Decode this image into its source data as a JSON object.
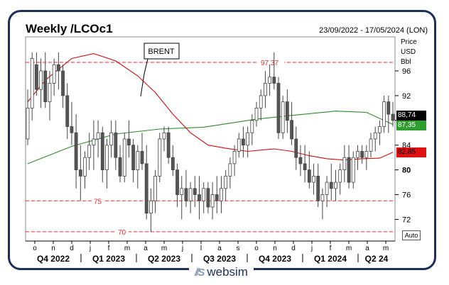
{
  "header": {
    "title": "Weekly /LCOc1",
    "date_range": "23/09/2022 - 17/05/2024 (LON)"
  },
  "units": [
    "Price",
    "USD",
    "Bbl"
  ],
  "annotation": "BRENT",
  "value_tags": [
    {
      "label": "88,74",
      "value": 88.74,
      "bg": "#000000",
      "fg": "#ffffff"
    },
    {
      "label": "87,35",
      "value": 87.35,
      "bg": "#2e9e2e",
      "fg": "#ffffff"
    },
    {
      "label": "82,85",
      "value": 82.85,
      "bg": "#e01010",
      "fg": "#000000"
    }
  ],
  "auto_label": "Auto",
  "logo": {
    "mark": "//S",
    "text": "websim"
  },
  "chart_data": {
    "type": "candlestick",
    "y_range": [
      68.5,
      101.5
    ],
    "y_ticks": [
      72,
      76,
      80,
      84,
      88,
      92,
      96
    ],
    "y_ticks_bold": [
      80
    ],
    "ref_lines": [
      {
        "value": 97.37,
        "label": "97,37"
      },
      {
        "value": 75,
        "label": "75"
      },
      {
        "value": 70,
        "label": "70"
      }
    ],
    "x_month_ticks": [
      "o",
      "n",
      "d",
      "j",
      "f",
      "m",
      "a",
      "m",
      "j",
      "l",
      "a",
      "s",
      "o",
      "n",
      "d",
      "j",
      "f",
      "m",
      "a",
      "m"
    ],
    "x_quarters": [
      "Q4 2022",
      "Q1 2023",
      "Q2 2023",
      "Q3 2023",
      "Q4 2023",
      "Q1 2024",
      "Q2 24"
    ],
    "candles": [
      [
        85,
        93,
        84,
        90
      ],
      [
        90,
        99,
        88,
        98
      ],
      [
        97,
        99,
        92,
        93
      ],
      [
        93,
        98,
        90,
        96
      ],
      [
        96,
        99,
        90,
        91
      ],
      [
        91,
        96,
        88,
        94
      ],
      [
        94,
        98,
        92,
        97
      ],
      [
        97,
        99,
        93,
        96
      ],
      [
        96,
        97,
        90,
        92
      ],
      [
        92,
        94,
        85,
        87
      ],
      [
        87,
        91,
        84,
        86
      ],
      [
        86,
        89,
        77,
        80
      ],
      [
        80,
        84,
        75,
        79
      ],
      [
        79,
        83,
        77,
        82
      ],
      [
        82,
        86,
        80,
        84
      ],
      [
        84,
        88,
        80,
        85
      ],
      [
        85,
        88,
        82,
        86
      ],
      [
        86,
        87,
        78,
        80
      ],
      [
        80,
        85,
        77,
        84
      ],
      [
        84,
        88,
        82,
        86
      ],
      [
        86,
        88,
        80,
        82
      ],
      [
        82,
        84,
        78,
        79
      ],
      [
        79,
        86,
        78,
        85
      ],
      [
        85,
        88,
        82,
        84
      ],
      [
        84,
        85,
        78,
        80
      ],
      [
        80,
        84,
        77,
        83
      ],
      [
        83,
        86,
        80,
        81
      ],
      [
        81,
        84,
        72,
        73
      ],
      [
        73,
        77,
        70,
        75
      ],
      [
        75,
        80,
        73,
        79
      ],
      [
        79,
        86,
        78,
        85
      ],
      [
        85,
        87,
        83,
        86
      ],
      [
        86,
        87,
        81,
        82
      ],
      [
        82,
        84,
        79,
        80
      ],
      [
        80,
        81,
        74,
        76
      ],
      [
        76,
        79,
        72,
        77
      ],
      [
        77,
        80,
        74,
        75
      ],
      [
        75,
        78,
        73,
        77
      ],
      [
        77,
        79,
        74,
        76
      ],
      [
        76,
        79,
        72,
        75
      ],
      [
        75,
        78,
        73,
        77
      ],
      [
        77,
        78,
        73,
        74
      ],
      [
        74,
        78,
        72,
        76
      ],
      [
        76,
        79,
        73,
        75
      ],
      [
        75,
        79,
        73,
        77
      ],
      [
        77,
        80,
        75,
        79
      ],
      [
        79,
        82,
        77,
        81
      ],
      [
        81,
        84,
        79,
        83
      ],
      [
        83,
        86,
        82,
        85
      ],
      [
        85,
        87,
        82,
        84
      ],
      [
        84,
        87,
        82,
        86
      ],
      [
        86,
        89,
        84,
        88
      ],
      [
        88,
        91,
        87,
        90
      ],
      [
        90,
        93,
        88,
        92
      ],
      [
        92,
        96,
        90,
        94
      ],
      [
        94,
        97,
        92,
        95
      ],
      [
        95,
        99,
        93,
        94
      ],
      [
        94,
        95,
        85,
        86
      ],
      [
        86,
        92,
        85,
        91
      ],
      [
        91,
        93,
        86,
        88
      ],
      [
        88,
        91,
        84,
        85
      ],
      [
        85,
        87,
        80,
        82
      ],
      [
        82,
        84,
        79,
        81
      ],
      [
        81,
        84,
        78,
        80
      ],
      [
        80,
        83,
        77,
        78
      ],
      [
        78,
        81,
        76,
        79
      ],
      [
        79,
        81,
        74,
        75
      ],
      [
        75,
        77,
        72,
        76
      ],
      [
        76,
        79,
        74,
        78
      ],
      [
        78,
        81,
        75,
        77
      ],
      [
        77,
        80,
        75,
        78
      ],
      [
        78,
        81,
        76,
        80
      ],
      [
        80,
        84,
        78,
        82
      ],
      [
        82,
        84,
        77,
        78
      ],
      [
        78,
        83,
        77,
        82
      ],
      [
        82,
        84,
        80,
        83
      ],
      [
        83,
        84,
        81,
        82
      ],
      [
        82,
        84,
        80,
        83
      ],
      [
        83,
        86,
        82,
        85
      ],
      [
        85,
        87,
        83,
        86
      ],
      [
        86,
        88,
        84,
        87
      ],
      [
        87,
        92,
        86,
        91
      ],
      [
        91,
        92,
        86,
        89
      ],
      [
        89,
        91,
        87,
        88
      ]
    ],
    "series": [
      {
        "name": "Short moving average",
        "color": "#2e8b2e",
        "points": [
          [
            0,
            81
          ],
          [
            10,
            83.8
          ],
          [
            20,
            85.8
          ],
          [
            30,
            86.6
          ],
          [
            40,
            86.9
          ],
          [
            52,
            88.2
          ],
          [
            60,
            88.8
          ],
          [
            70,
            89.5
          ],
          [
            77,
            89.3
          ],
          [
            83,
            87.35
          ]
        ]
      },
      {
        "name": "Long moving average",
        "color": "#cc1010",
        "points": [
          [
            0,
            91
          ],
          [
            4,
            94.5
          ],
          [
            10,
            98
          ],
          [
            15,
            98.8
          ],
          [
            20,
            97.6
          ],
          [
            25,
            95.2
          ],
          [
            29,
            92.5
          ],
          [
            33,
            89
          ],
          [
            37,
            86
          ],
          [
            41,
            84
          ],
          [
            45,
            83.5
          ],
          [
            50,
            83
          ],
          [
            56,
            83.4
          ],
          [
            60,
            83
          ],
          [
            64,
            82.3
          ],
          [
            68,
            81.8
          ],
          [
            72,
            81.6
          ],
          [
            76,
            81.8
          ],
          [
            80,
            81.9
          ],
          [
            83,
            82.85
          ]
        ]
      }
    ]
  }
}
